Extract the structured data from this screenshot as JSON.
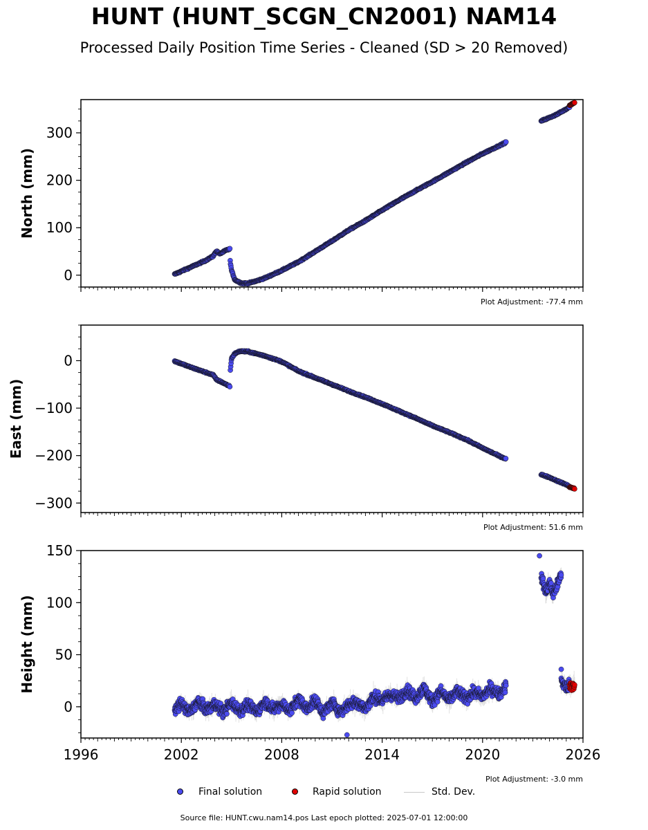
{
  "title": "HUNT (HUNT_SCGN_CN2001) NAM14",
  "subtitle": "Processed Daily Position Time Series - Cleaned (SD > 20 Removed)",
  "colors": {
    "final": "#4b4bf0",
    "rapid": "#e00000",
    "std": "#c8c8c8"
  },
  "chart_data": [
    {
      "type": "scatter",
      "ylabel": "North (mm)",
      "ylim": [
        -25,
        370
      ],
      "yticks": [
        0,
        100,
        200,
        300
      ],
      "xlim": [
        1996,
        2026
      ],
      "adjustment": "Plot Adjustment: -77.4 mm",
      "series": [
        {
          "name": "Final solution",
          "segments": [
            [
              [
                2001.6,
                2
              ],
              [
                2002.5,
                16
              ],
              [
                2003.4,
                30
              ],
              [
                2003.9,
                40
              ],
              [
                2004.1,
                51
              ],
              [
                2004.3,
                45
              ],
              [
                2004.7,
                53
              ],
              [
                2004.9,
                55
              ]
            ],
            [
              [
                2004.92,
                30
              ],
              [
                2005.0,
                10
              ],
              [
                2005.2,
                -10
              ],
              [
                2005.6,
                -17
              ],
              [
                2006.0,
                -17
              ],
              [
                2006.5,
                -12
              ],
              [
                2007.0,
                -6
              ],
              [
                2008.0,
                10
              ],
              [
                2009.0,
                28
              ],
              [
                2010.0,
                50
              ],
              [
                2011.0,
                72
              ],
              [
                2012.0,
                95
              ],
              [
                2013.0,
                115
              ],
              [
                2014.0,
                137
              ],
              [
                2015.0,
                158
              ],
              [
                2016.0,
                178
              ],
              [
                2017.0,
                197
              ],
              [
                2018.0,
                217
              ],
              [
                2019.0,
                237
              ],
              [
                2020.0,
                256
              ],
              [
                2021.0,
                273
              ],
              [
                2021.4,
                280
              ]
            ],
            [
              [
                2023.5,
                325
              ],
              [
                2024.0,
                332
              ],
              [
                2024.5,
                340
              ],
              [
                2025.0,
                350
              ],
              [
                2025.2,
                355
              ]
            ]
          ]
        },
        {
          "name": "Rapid solution",
          "segments": [
            [
              [
                2025.2,
                358
              ],
              [
                2025.5,
                364
              ]
            ]
          ]
        }
      ]
    },
    {
      "type": "scatter",
      "ylabel": "East (mm)",
      "ylim": [
        -320,
        75
      ],
      "yticks": [
        0,
        -100,
        -200,
        -300
      ],
      "xlim": [
        1996,
        2026
      ],
      "adjustment": "Plot Adjustment: 51.6 mm",
      "series": [
        {
          "name": "Final solution",
          "segments": [
            [
              [
                2001.6,
                -1
              ],
              [
                2002.5,
                -13
              ],
              [
                2003.4,
                -24
              ],
              [
                2003.9,
                -30
              ],
              [
                2004.1,
                -40
              ],
              [
                2004.4,
                -45
              ],
              [
                2004.9,
                -54
              ]
            ],
            [
              [
                2004.93,
                -20
              ],
              [
                2005.0,
                5
              ],
              [
                2005.2,
                15
              ],
              [
                2005.5,
                20
              ],
              [
                2006.0,
                19
              ],
              [
                2007.0,
                10
              ],
              [
                2008.0,
                -2
              ],
              [
                2009.0,
                -22
              ],
              [
                2010.0,
                -36
              ],
              [
                2011.0,
                -50
              ],
              [
                2012.0,
                -64
              ],
              [
                2013.0,
                -77
              ],
              [
                2014.0,
                -91
              ],
              [
                2015.0,
                -106
              ],
              [
                2016.0,
                -121
              ],
              [
                2017.0,
                -137
              ],
              [
                2018.0,
                -151
              ],
              [
                2019.0,
                -166
              ],
              [
                2020.0,
                -184
              ],
              [
                2021.0,
                -201
              ],
              [
                2021.4,
                -207
              ]
            ],
            [
              [
                2023.5,
                -240
              ],
              [
                2024.0,
                -246
              ],
              [
                2024.5,
                -254
              ],
              [
                2025.0,
                -261
              ],
              [
                2025.2,
                -266
              ]
            ]
          ]
        },
        {
          "name": "Rapid solution",
          "segments": [
            [
              [
                2025.2,
                -266
              ],
              [
                2025.5,
                -270
              ]
            ]
          ]
        }
      ]
    },
    {
      "type": "scatter",
      "ylabel": "Height (mm)",
      "ylim": [
        -30,
        150
      ],
      "yticks": [
        0,
        50,
        100,
        150
      ],
      "xlim": [
        1996,
        2026
      ],
      "xticks": [
        1996,
        2002,
        2008,
        2014,
        2020,
        2026
      ],
      "adjustment": "Plot Adjustment: -3.0 mm",
      "series": [
        {
          "name": "Final solution",
          "segments": [
            [
              [
                2001.6,
                -2
              ],
              [
                2002.0,
                3
              ],
              [
                2002.5,
                -5
              ],
              [
                2003.0,
                5
              ],
              [
                2003.5,
                -3
              ],
              [
                2004.0,
                3
              ],
              [
                2004.5,
                -5
              ],
              [
                2005.0,
                4
              ],
              [
                2005.5,
                -4
              ],
              [
                2006.0,
                2
              ],
              [
                2006.5,
                -5
              ],
              [
                2007.0,
                5
              ],
              [
                2007.5,
                -3
              ],
              [
                2008.0,
                3
              ],
              [
                2008.5,
                -4
              ],
              [
                2009.0,
                8
              ],
              [
                2009.5,
                -2
              ],
              [
                2010.0,
                6
              ],
              [
                2010.5,
                -6
              ],
              [
                2011.0,
                4
              ],
              [
                2011.5,
                -5
              ],
              [
                2012.0,
                2
              ],
              [
                2012.5,
                5
              ],
              [
                2013.0,
                -2
              ],
              [
                2013.5,
                10
              ],
              [
                2014.0,
                6
              ],
              [
                2014.5,
                12
              ],
              [
                2015.0,
                8
              ],
              [
                2015.5,
                16
              ],
              [
                2016.0,
                8
              ],
              [
                2016.5,
                18
              ],
              [
                2017.0,
                5
              ],
              [
                2017.5,
                15
              ],
              [
                2018.0,
                6
              ],
              [
                2018.5,
                15
              ],
              [
                2019.0,
                8
              ],
              [
                2019.5,
                14
              ],
              [
                2020.0,
                10
              ],
              [
                2020.5,
                18
              ],
              [
                2021.0,
                12
              ],
              [
                2021.4,
                20
              ]
            ],
            [
              [
                2023.5,
                125
              ],
              [
                2023.8,
                110
              ],
              [
                2024.0,
                120
              ],
              [
                2024.2,
                108
              ],
              [
                2024.5,
                118
              ],
              [
                2024.7,
                128
              ]
            ],
            [
              [
                2024.7,
                25
              ],
              [
                2025.0,
                18
              ],
              [
                2025.2,
                22
              ]
            ]
          ]
        },
        {
          "name": "Rapid solution",
          "segments": [
            [
              [
                2025.2,
                20
              ],
              [
                2025.5,
                22
              ]
            ]
          ]
        }
      ],
      "outliers": [
        [
          2011.9,
          -27
        ],
        [
          2023.4,
          145
        ],
        [
          2024.7,
          36
        ]
      ]
    }
  ],
  "legend": {
    "final": "Final solution",
    "rapid": "Rapid solution",
    "std": "Std. Dev."
  },
  "footer": "Source file: HUNT.cwu.nam14.pos  Last epoch plotted: 2025-07-01 12:00:00"
}
